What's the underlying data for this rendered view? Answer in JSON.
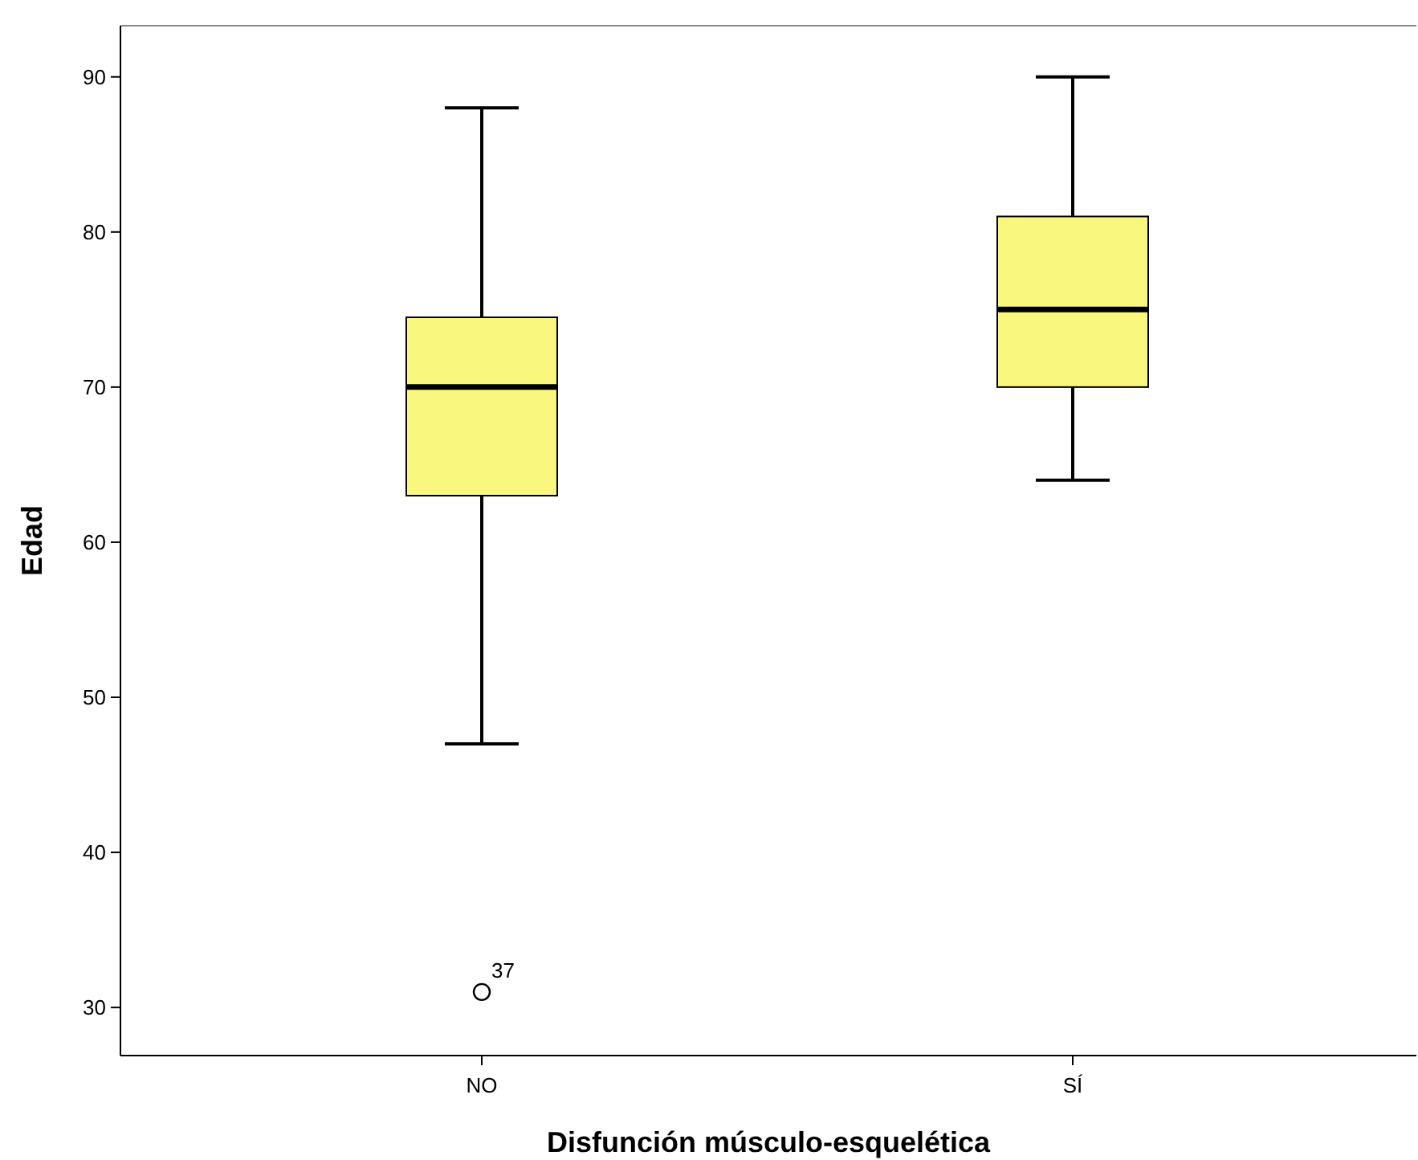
{
  "chart_data": {
    "type": "box",
    "xlabel": "Disfunción músculo-esquelética",
    "ylabel": "Edad",
    "categories": [
      "NO",
      "SÍ"
    ],
    "color": "#f9f77d",
    "boxes": [
      {
        "low": 47,
        "q1": 63,
        "median": 70,
        "q3": 74.5,
        "high": 88,
        "outliers": [
          31
        ]
      },
      {
        "low": 64,
        "q1": 70,
        "median": 75,
        "q3": 81,
        "high": 90
      }
    ],
    "ylim": [
      26.9,
      93.3
    ],
    "yticks": [
      30,
      40,
      50,
      60,
      70,
      80,
      90
    ],
    "grid": false,
    "annotations": [
      "37"
    ]
  }
}
